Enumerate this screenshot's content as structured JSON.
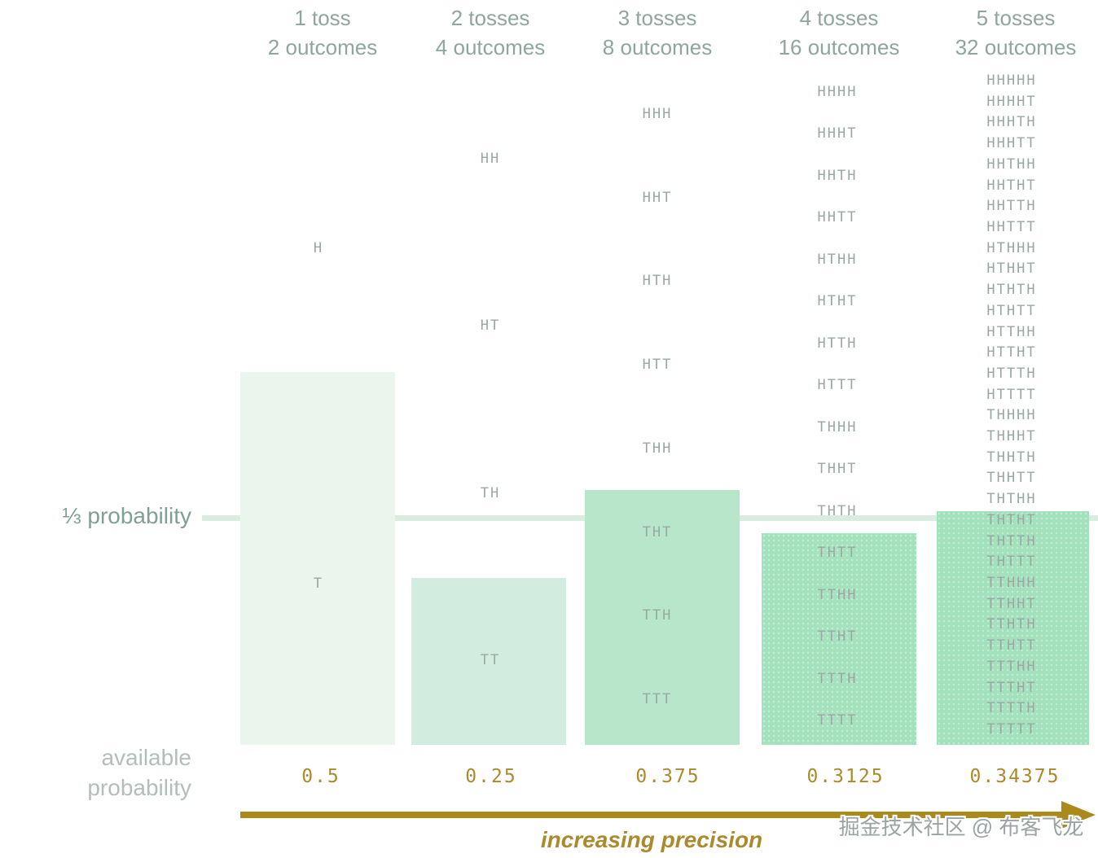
{
  "labels": {
    "reference_line": "⅓ probability",
    "available_line1": "available",
    "available_line2": "probability",
    "arrow_label": "increasing precision",
    "watermark": "掘金技术社区 @ 布客飞龙"
  },
  "colors": {
    "bar1": "#eaf5ee",
    "bar2": "#d2ecdf",
    "bar3": "#b8e6ca",
    "bar4": "#a4e2bd",
    "bar5": "#a2e1bc",
    "reference_line": "#d8eddf",
    "header_text": "#8ea69e",
    "sequence_text": "#9aa8a3",
    "side_label": "#7fa094",
    "available_label": "#b3beb9",
    "value_text": "#ab8a2e",
    "arrow": "#ab8a1c",
    "watermark_text": "#9ba4a3"
  },
  "chart_data": {
    "type": "bar",
    "title": "",
    "ylabel": "available probability",
    "xlabel": "increasing precision",
    "ylim": [
      0,
      1
    ],
    "reference_line": {
      "label": "⅓ probability",
      "value": 0.33333
    },
    "categories": [
      "1 toss",
      "2 tosses",
      "3 tosses",
      "4 tosses",
      "5 tosses"
    ],
    "outcome_counts": [
      2,
      4,
      8,
      16,
      32
    ],
    "values": [
      0.5,
      0.25,
      0.375,
      0.3125,
      0.34375
    ],
    "value_labels": [
      "0.5",
      "0.25",
      "0.375",
      "0.3125",
      "0.34375"
    ],
    "columns": [
      {
        "header": "1 toss",
        "subheader": "2 outcomes",
        "tosses": 1,
        "outcomes": 2,
        "available_probability": 0.5,
        "value_label": "0.5",
        "bar_covers_count": 1,
        "sequences": [
          "H",
          "T"
        ]
      },
      {
        "header": "2 tosses",
        "subheader": "4 outcomes",
        "tosses": 2,
        "outcomes": 4,
        "available_probability": 0.25,
        "value_label": "0.25",
        "bar_covers_count": 1,
        "sequences": [
          "HH",
          "HT",
          "TH",
          "TT"
        ]
      },
      {
        "header": "3 tosses",
        "subheader": "8 outcomes",
        "tosses": 3,
        "outcomes": 8,
        "available_probability": 0.375,
        "value_label": "0.375",
        "bar_covers_count": 3,
        "sequences": [
          "HHH",
          "HHT",
          "HTH",
          "HTT",
          "THH",
          "THT",
          "TTH",
          "TTT"
        ]
      },
      {
        "header": "4 tosses",
        "subheader": "16 outcomes",
        "tosses": 4,
        "outcomes": 16,
        "available_probability": 0.3125,
        "value_label": "0.3125",
        "bar_covers_count": 5,
        "sequences": [
          "HHHH",
          "HHHT",
          "HHTH",
          "HHTT",
          "HTHH",
          "HTHT",
          "HTTH",
          "HTTT",
          "THHH",
          "THHT",
          "THTH",
          "THTT",
          "TTHH",
          "TTHT",
          "TTTH",
          "TTTT"
        ]
      },
      {
        "header": "5 tosses",
        "subheader": "32 outcomes",
        "tosses": 5,
        "outcomes": 32,
        "available_probability": 0.34375,
        "value_label": "0.34375",
        "bar_covers_count": 11,
        "sequences": [
          "HHHHH",
          "HHHHT",
          "HHHTH",
          "HHHTT",
          "HHTHH",
          "HHTHT",
          "HHTTH",
          "HHTTT",
          "HTHHH",
          "HTHHT",
          "HTHTH",
          "HTHTT",
          "HTTHH",
          "HTTHT",
          "HTTTH",
          "HTTTT",
          "THHHH",
          "THHHT",
          "THHTH",
          "THHTT",
          "THTHH",
          "THTHT",
          "THTTH",
          "THTTT",
          "TTHHH",
          "TTHHT",
          "TTHTH",
          "TTHTT",
          "TTTHH",
          "TTTHT",
          "TTTTH",
          "TTTTT"
        ]
      }
    ]
  }
}
